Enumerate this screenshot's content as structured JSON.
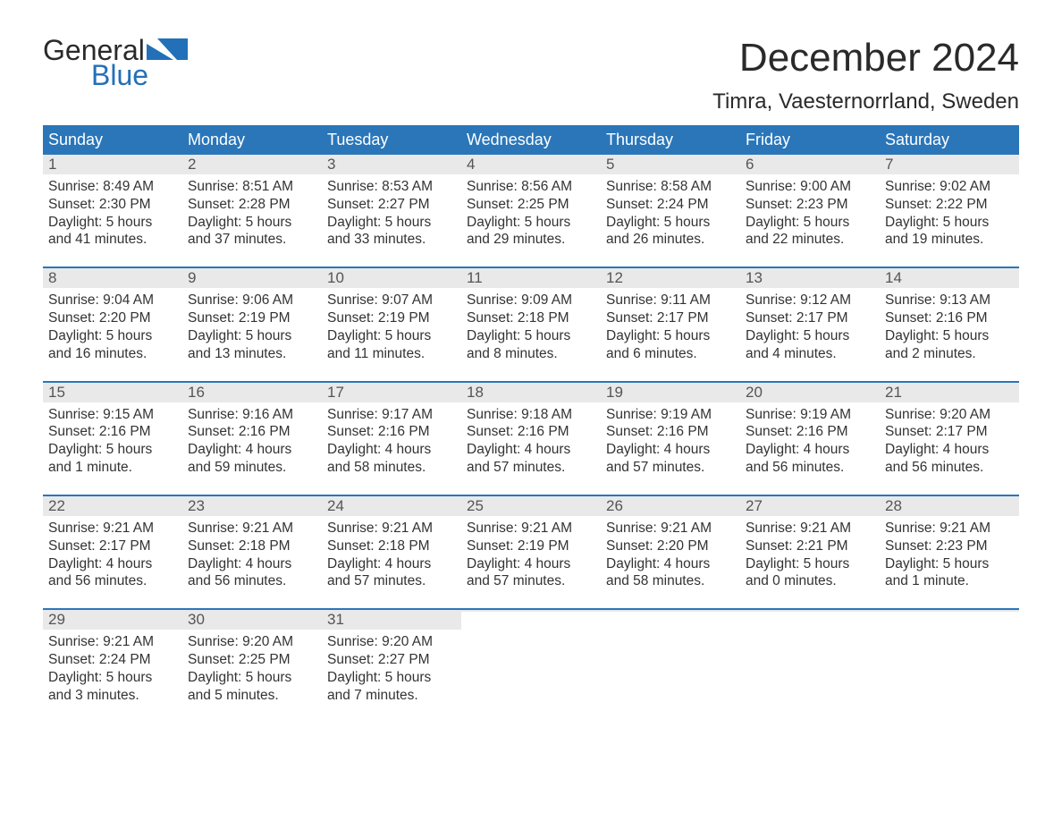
{
  "logo": {
    "word1": "General",
    "word2": "Blue"
  },
  "header": {
    "month_title": "December 2024",
    "location": "Timra, Vaesternorrland, Sweden"
  },
  "colors": {
    "header_bg": "#2a76b9",
    "header_text": "#ffffff",
    "daynum_bg": "#e9e9e9",
    "daynum_text": "#555555",
    "body_text": "#333333",
    "accent_blue": "#2270b8",
    "background": "#ffffff"
  },
  "weekdays": [
    "Sunday",
    "Monday",
    "Tuesday",
    "Wednesday",
    "Thursday",
    "Friday",
    "Saturday"
  ],
  "weeks": [
    [
      {
        "n": "1",
        "sunrise": "Sunrise: 8:49 AM",
        "sunset": "Sunset: 2:30 PM",
        "dl1": "Daylight: 5 hours",
        "dl2": "and 41 minutes."
      },
      {
        "n": "2",
        "sunrise": "Sunrise: 8:51 AM",
        "sunset": "Sunset: 2:28 PM",
        "dl1": "Daylight: 5 hours",
        "dl2": "and 37 minutes."
      },
      {
        "n": "3",
        "sunrise": "Sunrise: 8:53 AM",
        "sunset": "Sunset: 2:27 PM",
        "dl1": "Daylight: 5 hours",
        "dl2": "and 33 minutes."
      },
      {
        "n": "4",
        "sunrise": "Sunrise: 8:56 AM",
        "sunset": "Sunset: 2:25 PM",
        "dl1": "Daylight: 5 hours",
        "dl2": "and 29 minutes."
      },
      {
        "n": "5",
        "sunrise": "Sunrise: 8:58 AM",
        "sunset": "Sunset: 2:24 PM",
        "dl1": "Daylight: 5 hours",
        "dl2": "and 26 minutes."
      },
      {
        "n": "6",
        "sunrise": "Sunrise: 9:00 AM",
        "sunset": "Sunset: 2:23 PM",
        "dl1": "Daylight: 5 hours",
        "dl2": "and 22 minutes."
      },
      {
        "n": "7",
        "sunrise": "Sunrise: 9:02 AM",
        "sunset": "Sunset: 2:22 PM",
        "dl1": "Daylight: 5 hours",
        "dl2": "and 19 minutes."
      }
    ],
    [
      {
        "n": "8",
        "sunrise": "Sunrise: 9:04 AM",
        "sunset": "Sunset: 2:20 PM",
        "dl1": "Daylight: 5 hours",
        "dl2": "and 16 minutes."
      },
      {
        "n": "9",
        "sunrise": "Sunrise: 9:06 AM",
        "sunset": "Sunset: 2:19 PM",
        "dl1": "Daylight: 5 hours",
        "dl2": "and 13 minutes."
      },
      {
        "n": "10",
        "sunrise": "Sunrise: 9:07 AM",
        "sunset": "Sunset: 2:19 PM",
        "dl1": "Daylight: 5 hours",
        "dl2": "and 11 minutes."
      },
      {
        "n": "11",
        "sunrise": "Sunrise: 9:09 AM",
        "sunset": "Sunset: 2:18 PM",
        "dl1": "Daylight: 5 hours",
        "dl2": "and 8 minutes."
      },
      {
        "n": "12",
        "sunrise": "Sunrise: 9:11 AM",
        "sunset": "Sunset: 2:17 PM",
        "dl1": "Daylight: 5 hours",
        "dl2": "and 6 minutes."
      },
      {
        "n": "13",
        "sunrise": "Sunrise: 9:12 AM",
        "sunset": "Sunset: 2:17 PM",
        "dl1": "Daylight: 5 hours",
        "dl2": "and 4 minutes."
      },
      {
        "n": "14",
        "sunrise": "Sunrise: 9:13 AM",
        "sunset": "Sunset: 2:16 PM",
        "dl1": "Daylight: 5 hours",
        "dl2": "and 2 minutes."
      }
    ],
    [
      {
        "n": "15",
        "sunrise": "Sunrise: 9:15 AM",
        "sunset": "Sunset: 2:16 PM",
        "dl1": "Daylight: 5 hours",
        "dl2": "and 1 minute."
      },
      {
        "n": "16",
        "sunrise": "Sunrise: 9:16 AM",
        "sunset": "Sunset: 2:16 PM",
        "dl1": "Daylight: 4 hours",
        "dl2": "and 59 minutes."
      },
      {
        "n": "17",
        "sunrise": "Sunrise: 9:17 AM",
        "sunset": "Sunset: 2:16 PM",
        "dl1": "Daylight: 4 hours",
        "dl2": "and 58 minutes."
      },
      {
        "n": "18",
        "sunrise": "Sunrise: 9:18 AM",
        "sunset": "Sunset: 2:16 PM",
        "dl1": "Daylight: 4 hours",
        "dl2": "and 57 minutes."
      },
      {
        "n": "19",
        "sunrise": "Sunrise: 9:19 AM",
        "sunset": "Sunset: 2:16 PM",
        "dl1": "Daylight: 4 hours",
        "dl2": "and 57 minutes."
      },
      {
        "n": "20",
        "sunrise": "Sunrise: 9:19 AM",
        "sunset": "Sunset: 2:16 PM",
        "dl1": "Daylight: 4 hours",
        "dl2": "and 56 minutes."
      },
      {
        "n": "21",
        "sunrise": "Sunrise: 9:20 AM",
        "sunset": "Sunset: 2:17 PM",
        "dl1": "Daylight: 4 hours",
        "dl2": "and 56 minutes."
      }
    ],
    [
      {
        "n": "22",
        "sunrise": "Sunrise: 9:21 AM",
        "sunset": "Sunset: 2:17 PM",
        "dl1": "Daylight: 4 hours",
        "dl2": "and 56 minutes."
      },
      {
        "n": "23",
        "sunrise": "Sunrise: 9:21 AM",
        "sunset": "Sunset: 2:18 PM",
        "dl1": "Daylight: 4 hours",
        "dl2": "and 56 minutes."
      },
      {
        "n": "24",
        "sunrise": "Sunrise: 9:21 AM",
        "sunset": "Sunset: 2:18 PM",
        "dl1": "Daylight: 4 hours",
        "dl2": "and 57 minutes."
      },
      {
        "n": "25",
        "sunrise": "Sunrise: 9:21 AM",
        "sunset": "Sunset: 2:19 PM",
        "dl1": "Daylight: 4 hours",
        "dl2": "and 57 minutes."
      },
      {
        "n": "26",
        "sunrise": "Sunrise: 9:21 AM",
        "sunset": "Sunset: 2:20 PM",
        "dl1": "Daylight: 4 hours",
        "dl2": "and 58 minutes."
      },
      {
        "n": "27",
        "sunrise": "Sunrise: 9:21 AM",
        "sunset": "Sunset: 2:21 PM",
        "dl1": "Daylight: 5 hours",
        "dl2": "and 0 minutes."
      },
      {
        "n": "28",
        "sunrise": "Sunrise: 9:21 AM",
        "sunset": "Sunset: 2:23 PM",
        "dl1": "Daylight: 5 hours",
        "dl2": "and 1 minute."
      }
    ],
    [
      {
        "n": "29",
        "sunrise": "Sunrise: 9:21 AM",
        "sunset": "Sunset: 2:24 PM",
        "dl1": "Daylight: 5 hours",
        "dl2": "and 3 minutes."
      },
      {
        "n": "30",
        "sunrise": "Sunrise: 9:20 AM",
        "sunset": "Sunset: 2:25 PM",
        "dl1": "Daylight: 5 hours",
        "dl2": "and 5 minutes."
      },
      {
        "n": "31",
        "sunrise": "Sunrise: 9:20 AM",
        "sunset": "Sunset: 2:27 PM",
        "dl1": "Daylight: 5 hours",
        "dl2": "and 7 minutes."
      },
      {
        "empty": true
      },
      {
        "empty": true
      },
      {
        "empty": true
      },
      {
        "empty": true
      }
    ]
  ]
}
